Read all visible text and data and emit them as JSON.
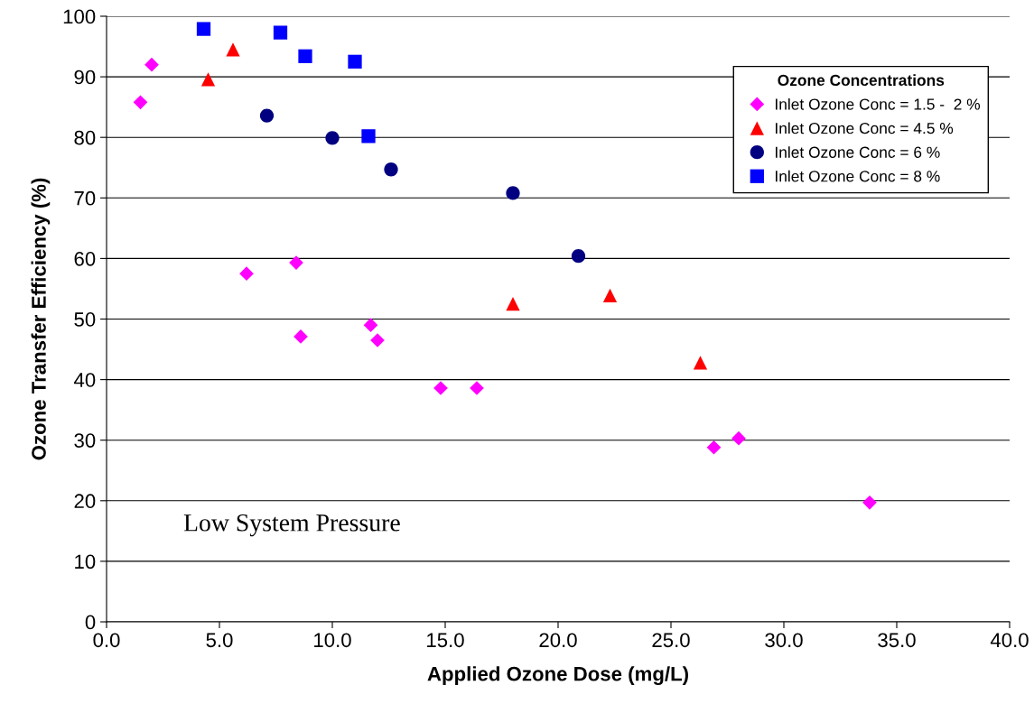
{
  "chart_data": {
    "type": "scatter",
    "xlabel": "Applied Ozone Dose (mg/L)",
    "ylabel": "Ozone Transfer Efficiency (%)",
    "legend_title": "Ozone Concentrations",
    "legend": "top right",
    "grid": "y",
    "xlim": [
      0,
      40
    ],
    "ylim": [
      0,
      100
    ],
    "xticks": [
      {
        "value": 0,
        "label": "0.0"
      },
      {
        "value": 5,
        "label": "5.0"
      },
      {
        "value": 10,
        "label": "10.0"
      },
      {
        "value": 15,
        "label": "15.0"
      },
      {
        "value": 20,
        "label": "20.0"
      },
      {
        "value": 25,
        "label": "25.0"
      },
      {
        "value": 30,
        "label": "30.0"
      },
      {
        "value": 35,
        "label": "35.0"
      },
      {
        "value": 40,
        "label": "40.0"
      }
    ],
    "yticks": [
      0,
      10,
      20,
      30,
      40,
      50,
      60,
      70,
      80,
      90,
      100
    ],
    "annotations": [
      "Low System Pressure"
    ],
    "series": [
      {
        "name": "Inlet Ozone Conc = 1.5 -  2 %",
        "color": "#ff00ff",
        "marker": "diamond",
        "x": [
          1.5,
          2.0,
          6.2,
          8.4,
          8.6,
          11.7,
          12.0,
          14.8,
          16.4,
          26.9,
          28.0,
          33.8
        ],
        "values": [
          85.8,
          92.0,
          57.5,
          59.3,
          47.1,
          49.0,
          46.5,
          38.6,
          38.6,
          28.8,
          30.3,
          19.7
        ]
      },
      {
        "name": "Inlet Ozone Conc = 4.5 %",
        "color": "#ff0000",
        "marker": "triangle",
        "x": [
          4.5,
          5.6,
          18.0,
          22.3,
          26.3
        ],
        "values": [
          89.6,
          94.5,
          52.5,
          53.9,
          42.8
        ]
      },
      {
        "name": "Inlet Ozone Conc = 6 %",
        "color": "#000080",
        "marker": "circle",
        "x": [
          7.1,
          10.0,
          12.6,
          18.0,
          20.9
        ],
        "values": [
          83.6,
          79.9,
          74.7,
          70.8,
          60.4
        ]
      },
      {
        "name": "Inlet Ozone Conc = 8 %",
        "color": "#0000ff",
        "marker": "square",
        "x": [
          4.3,
          7.7,
          8.8,
          11.0,
          11.6
        ],
        "values": [
          97.9,
          97.3,
          93.4,
          92.5,
          80.2
        ]
      }
    ]
  }
}
